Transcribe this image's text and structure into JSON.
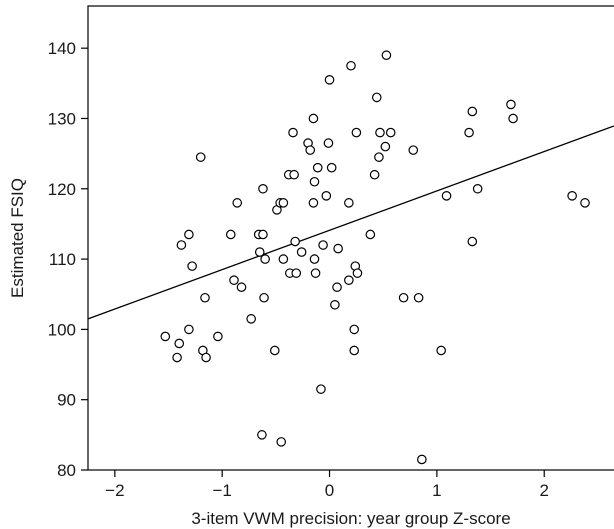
{
  "chart_data": {
    "type": "scatter",
    "xlabel": "3-item VWM precision: year group Z-score",
    "ylabel": "Estimated FSIQ",
    "xlim": [
      -2.25,
      2.65
    ],
    "ylim": [
      80,
      146
    ],
    "x_ticks": [
      "−2",
      "−1",
      "0",
      "1",
      "2"
    ],
    "y_ticks": [
      "80",
      "90",
      "100",
      "110",
      "120",
      "130",
      "140"
    ],
    "grid": false,
    "marker": "open-circle",
    "colors": {
      "axis": "#000000",
      "points": "#000000",
      "fit_line": "#000000"
    },
    "fit_line": {
      "intercept": 114.1,
      "slope": 5.6
    },
    "points": [
      {
        "x": -1.53,
        "y": 99
      },
      {
        "x": -1.42,
        "y": 96
      },
      {
        "x": -1.4,
        "y": 98
      },
      {
        "x": -1.38,
        "y": 112
      },
      {
        "x": -1.31,
        "y": 113.5
      },
      {
        "x": -1.31,
        "y": 100
      },
      {
        "x": -1.28,
        "y": 109
      },
      {
        "x": -1.2,
        "y": 124.5
      },
      {
        "x": -1.18,
        "y": 97
      },
      {
        "x": -1.16,
        "y": 104.5
      },
      {
        "x": -1.15,
        "y": 96
      },
      {
        "x": -1.04,
        "y": 99
      },
      {
        "x": -0.92,
        "y": 113.5
      },
      {
        "x": -0.89,
        "y": 107
      },
      {
        "x": -0.86,
        "y": 118
      },
      {
        "x": -0.82,
        "y": 106
      },
      {
        "x": -0.73,
        "y": 101.5
      },
      {
        "x": -0.66,
        "y": 113.5
      },
      {
        "x": -0.65,
        "y": 111
      },
      {
        "x": -0.63,
        "y": 85
      },
      {
        "x": -0.62,
        "y": 120
      },
      {
        "x": -0.62,
        "y": 113.5
      },
      {
        "x": -0.61,
        "y": 104.5
      },
      {
        "x": -0.6,
        "y": 110
      },
      {
        "x": -0.51,
        "y": 97
      },
      {
        "x": -0.49,
        "y": 117
      },
      {
        "x": -0.46,
        "y": 118
      },
      {
        "x": -0.45,
        "y": 84
      },
      {
        "x": -0.43,
        "y": 118
      },
      {
        "x": -0.43,
        "y": 110
      },
      {
        "x": -0.38,
        "y": 122
      },
      {
        "x": -0.37,
        "y": 108
      },
      {
        "x": -0.34,
        "y": 128
      },
      {
        "x": -0.33,
        "y": 122
      },
      {
        "x": -0.32,
        "y": 112.5
      },
      {
        "x": -0.31,
        "y": 108
      },
      {
        "x": -0.26,
        "y": 111
      },
      {
        "x": -0.2,
        "y": 126.5
      },
      {
        "x": -0.18,
        "y": 125.5
      },
      {
        "x": -0.15,
        "y": 130
      },
      {
        "x": -0.15,
        "y": 118
      },
      {
        "x": -0.14,
        "y": 121
      },
      {
        "x": -0.14,
        "y": 110
      },
      {
        "x": -0.13,
        "y": 108
      },
      {
        "x": -0.11,
        "y": 123
      },
      {
        "x": -0.08,
        "y": 91.5
      },
      {
        "x": -0.06,
        "y": 112
      },
      {
        "x": -0.03,
        "y": 119
      },
      {
        "x": -0.01,
        "y": 126.5
      },
      {
        "x": 0.0,
        "y": 135.5
      },
      {
        "x": 0.02,
        "y": 123
      },
      {
        "x": 0.05,
        "y": 103.5
      },
      {
        "x": 0.07,
        "y": 106
      },
      {
        "x": 0.08,
        "y": 111.5
      },
      {
        "x": 0.18,
        "y": 118
      },
      {
        "x": 0.18,
        "y": 107
      },
      {
        "x": 0.2,
        "y": 137.5
      },
      {
        "x": 0.23,
        "y": 100
      },
      {
        "x": 0.23,
        "y": 97
      },
      {
        "x": 0.24,
        "y": 109
      },
      {
        "x": 0.25,
        "y": 128
      },
      {
        "x": 0.26,
        "y": 108
      },
      {
        "x": 0.38,
        "y": 113.5
      },
      {
        "x": 0.42,
        "y": 122
      },
      {
        "x": 0.44,
        "y": 133
      },
      {
        "x": 0.46,
        "y": 124.5
      },
      {
        "x": 0.47,
        "y": 128
      },
      {
        "x": 0.52,
        "y": 126
      },
      {
        "x": 0.53,
        "y": 139
      },
      {
        "x": 0.57,
        "y": 128
      },
      {
        "x": 0.69,
        "y": 104.5
      },
      {
        "x": 0.78,
        "y": 125.5
      },
      {
        "x": 0.83,
        "y": 104.5
      },
      {
        "x": 0.86,
        "y": 81.5
      },
      {
        "x": 1.04,
        "y": 97
      },
      {
        "x": 1.09,
        "y": 119
      },
      {
        "x": 1.3,
        "y": 128
      },
      {
        "x": 1.33,
        "y": 131
      },
      {
        "x": 1.33,
        "y": 112.5
      },
      {
        "x": 1.38,
        "y": 120
      },
      {
        "x": 1.69,
        "y": 132
      },
      {
        "x": 1.71,
        "y": 130
      },
      {
        "x": 2.26,
        "y": 119
      },
      {
        "x": 2.38,
        "y": 118
      }
    ]
  }
}
